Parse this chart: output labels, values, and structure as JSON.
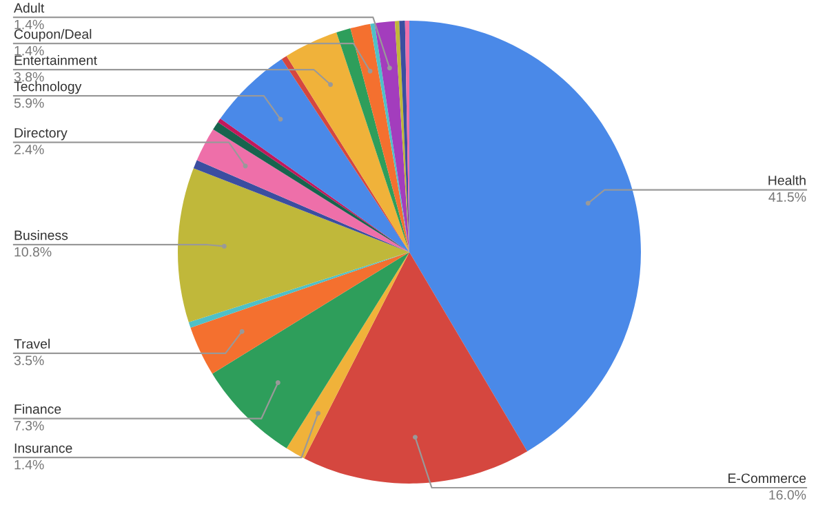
{
  "chart_data": {
    "type": "pie",
    "legend": false,
    "value_labels": [
      "41.5%",
      "16.0%",
      "1.4%",
      "7.3%",
      "3.5%",
      null,
      "10.8%",
      null,
      "2.4%",
      null,
      null,
      "5.9%",
      null,
      "3.8%",
      null,
      "1.4%",
      null,
      "1.4%",
      null,
      null,
      null
    ],
    "categories": [
      "Health",
      "E-Commerce",
      "Insurance",
      "Finance",
      "Travel",
      null,
      "Business",
      null,
      "Directory",
      null,
      null,
      "Technology",
      null,
      "Entertainment",
      null,
      "Coupon/Deal",
      null,
      "Adult",
      null,
      null,
      null
    ],
    "values": [
      41.5,
      16.0,
      1.4,
      7.3,
      3.5,
      0.4,
      10.8,
      0.6,
      2.4,
      0.6,
      0.3,
      5.9,
      0.4,
      3.8,
      1.0,
      1.4,
      0.3,
      1.4,
      0.3,
      0.4,
      0.3
    ],
    "colors": [
      "#4a89e8",
      "#d5473f",
      "#f0b23a",
      "#2e9e5b",
      "#f4702f",
      "#4fc0c8",
      "#c0b83a",
      "#3b4ea0",
      "#ee6fa9",
      "#17644e",
      "#c2185b",
      "#4a89e8",
      "#d5473f",
      "#f0b23a",
      "#2e9e5b",
      "#f4702f",
      "#4fc0c8",
      "#a33dbd",
      "#c0b83a",
      "#3b4ea0",
      "#ee6fa9"
    ]
  }
}
